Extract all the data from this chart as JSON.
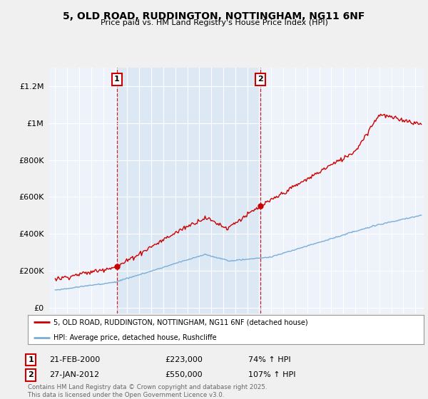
{
  "title": "5, OLD ROAD, RUDDINGTON, NOTTINGHAM, NG11 6NF",
  "subtitle": "Price paid vs. HM Land Registry's House Price Index (HPI)",
  "ylabel_ticks": [
    "£0",
    "£200K",
    "£400K",
    "£600K",
    "£800K",
    "£1M",
    "£1.2M"
  ],
  "ytick_values": [
    0,
    200000,
    400000,
    600000,
    800000,
    1000000,
    1200000
  ],
  "ylim": [
    -30000,
    1300000
  ],
  "xlim_start": 1994.5,
  "xlim_end": 2025.7,
  "legend_line1": "5, OLD ROAD, RUDDINGTON, NOTTINGHAM, NG11 6NF (detached house)",
  "legend_line2": "HPI: Average price, detached house, Rushcliffe",
  "sale1_date": "21-FEB-2000",
  "sale1_price": "£223,000",
  "sale1_hpi": "74% ↑ HPI",
  "sale2_date": "27-JAN-2012",
  "sale2_price": "£550,000",
  "sale2_hpi": "107% ↑ HPI",
  "footnote": "Contains HM Land Registry data © Crown copyright and database right 2025.\nThis data is licensed under the Open Government Licence v3.0.",
  "sale1_year": 2000.13,
  "sale2_year": 2012.08,
  "property_color": "#cc0000",
  "hpi_color": "#7aaed6",
  "shade_color": "#dde8f5",
  "background_color": "#eef2fa",
  "fig_bg_color": "#f0f0f0"
}
